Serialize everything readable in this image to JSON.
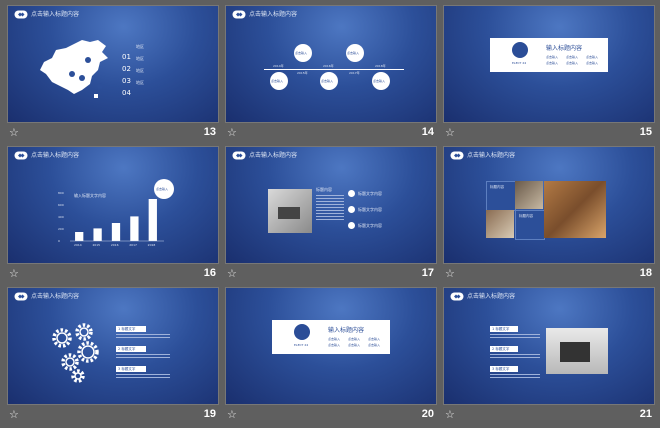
{
  "header_title": "点击输入标题内容",
  "slides": [
    {
      "number": "13",
      "list_nums": [
        "01",
        "02",
        "03",
        "04"
      ],
      "list_titles": [
        "地区",
        "地区",
        "地区",
        "地区"
      ]
    },
    {
      "number": "14",
      "bubbles": [
        "点击输入",
        "点击输入",
        "点击输入",
        "点击输入",
        "点击输入"
      ],
      "dates": [
        "2014年",
        "2015年",
        "2016年",
        "2017年",
        "2018年"
      ]
    },
    {
      "number": "15",
      "box_title": "输入标题内容",
      "box_sub": "ELECT 24",
      "items": [
        "点击输入",
        "点击输入",
        "点击输入",
        "点击输入",
        "点击输入",
        "点击输入"
      ]
    },
    {
      "number": "16",
      "chart_title": "输入标题文字内容",
      "callout": "点击输入",
      "chart_data": {
        "type": "bar",
        "categories": [
          "2014",
          "2015",
          "2016",
          "2017",
          "2018"
        ],
        "values": [
          150,
          210,
          300,
          410,
          700
        ],
        "ylim": [
          0,
          800
        ],
        "yticks": [
          "800",
          "600",
          "400",
          "200",
          "0"
        ]
      }
    },
    {
      "number": "17",
      "label": "标题内容",
      "items": [
        "标题文字内容",
        "标题文字内容",
        "标题文字内容"
      ]
    },
    {
      "number": "18",
      "labels": [
        "标题内容",
        "标题内容"
      ]
    },
    {
      "number": "19",
      "items": [
        "1 标题文字",
        "2 标题文字",
        "3 标题文字"
      ]
    },
    {
      "number": "20",
      "box_title": "输入标题内容",
      "box_sub": "ELECT 24",
      "items": [
        "点击输入",
        "点击输入",
        "点击输入",
        "点击输入",
        "点击输入",
        "点击输入"
      ]
    },
    {
      "number": "21",
      "items": [
        "1 标题文字",
        "2 标题文字",
        "3 标题文字"
      ]
    }
  ],
  "colors": {
    "accent": "#2b4d97",
    "bg": "#5f5f5f"
  }
}
